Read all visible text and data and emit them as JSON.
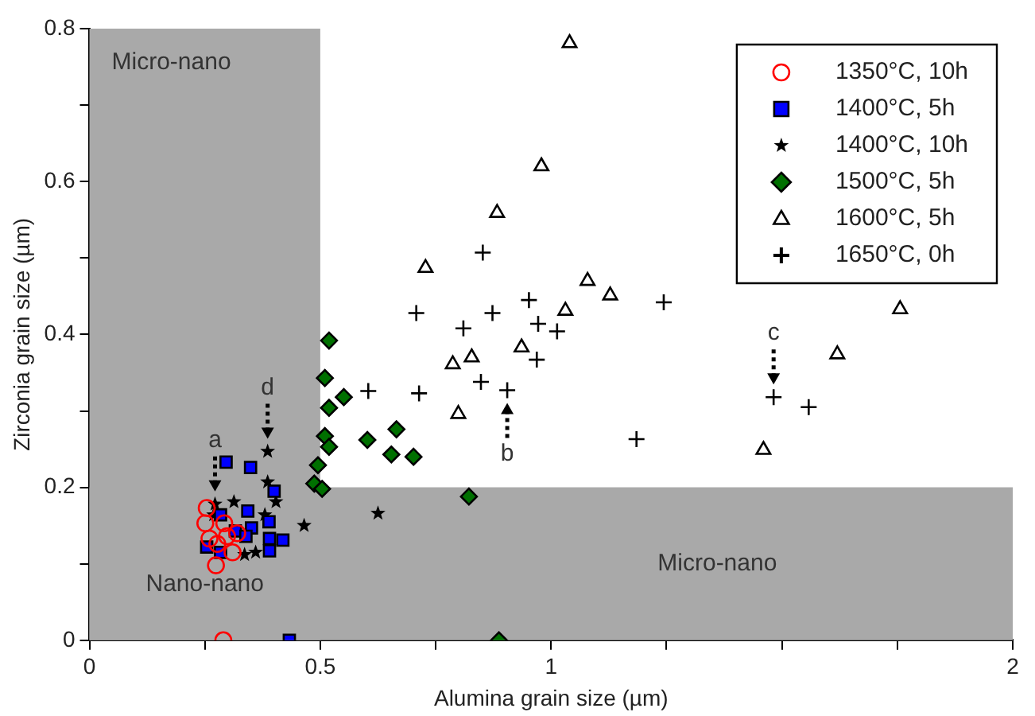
{
  "chart_data": {
    "type": "scatter",
    "xlabel": "Alumina grain size (µm)",
    "ylabel": "Zirconia grain size (µm)",
    "xlim": [
      0,
      2
    ],
    "xticks": [
      0,
      {
        "value": 0.25,
        "label": null
      },
      0.5,
      {
        "value": 0.75,
        "label": null
      },
      1,
      {
        "value": 1.25,
        "label": null
      },
      {
        "value": 1.5,
        "label": null
      },
      {
        "value": 1.75,
        "label": null
      },
      2
    ],
    "ylim": [
      0,
      0.8
    ],
    "yticks": [
      0,
      {
        "value": 0.1,
        "label": null
      },
      0.2,
      {
        "value": 0.3,
        "label": null
      },
      0.4,
      {
        "value": 0.5,
        "label": null
      },
      0.6,
      {
        "value": 0.7,
        "label": null
      },
      0.8
    ],
    "grid": false,
    "legend": "top right",
    "bands": [
      {
        "axis": "x",
        "from": 0,
        "to": 0.5,
        "label": "Micro-nano",
        "color": "#a9a9a9"
      },
      {
        "axis": "y",
        "from": 0,
        "to": 0.2,
        "label": "Micro-nano",
        "color": "#a9a9a9"
      }
    ],
    "annotations": [
      {
        "text": "a",
        "x": 0.272,
        "y": 0.178
      },
      {
        "text": "d",
        "x": 0.386,
        "y": 0.247
      },
      {
        "text": "b",
        "x": 0.905,
        "y": 0.327
      },
      {
        "text": "c",
        "x": 1.482,
        "y": 0.318
      },
      "Nano-nano"
    ],
    "series": [
      {
        "name": "1350°C, 10h",
        "color": "#ff0000",
        "marker": "circle",
        "x": [
          0.254,
          0.251,
          0.26,
          0.277,
          0.292,
          0.298,
          0.31,
          0.274,
          0.32,
          0.29
        ],
        "values": [
          0.173,
          0.153,
          0.133,
          0.126,
          0.153,
          0.136,
          0.115,
          0.098,
          0.14,
          0
        ]
      },
      {
        "name": "1400°C, 5h",
        "color": "#0000ff",
        "marker": "square",
        "x": [
          0.296,
          0.349,
          0.4,
          0.284,
          0.343,
          0.389,
          0.316,
          0.351,
          0.339,
          0.254,
          0.284,
          0.39,
          0.419,
          0.39,
          0.433
        ],
        "values": [
          0.233,
          0.226,
          0.195,
          0.164,
          0.169,
          0.155,
          0.143,
          0.147,
          0.136,
          0.122,
          0.115,
          0.133,
          0.131,
          0.117,
          0
        ]
      },
      {
        "name": "1400°C, 10h",
        "color": "#000000",
        "marker": "star",
        "x": [
          0.386,
          0.386,
          0.404,
          0.272,
          0.313,
          0.465,
          0.38,
          0.336,
          0.36,
          0.269,
          0.625
        ],
        "values": [
          0.247,
          0.207,
          0.181,
          0.178,
          0.181,
          0.15,
          0.164,
          0.112,
          0.115,
          0.164,
          0.166
        ]
      },
      {
        "name": "1500°C, 5h",
        "color": "#007000",
        "marker": "diamond",
        "x": [
          0.519,
          0.51,
          0.551,
          0.519,
          0.51,
          0.519,
          0.495,
          0.487,
          0.504,
          0.602,
          0.665,
          0.654,
          0.702,
          0.822,
          0.887
        ],
        "values": [
          0.392,
          0.343,
          0.318,
          0.304,
          0.267,
          0.253,
          0.229,
          0.205,
          0.198,
          0.262,
          0.276,
          0.243,
          0.24,
          0.188,
          0
        ]
      },
      {
        "name": "1600°C, 5h",
        "color": "#000000",
        "marker": "triangle",
        "x": [
          1.04,
          0.979,
          0.883,
          0.728,
          1.079,
          1.128,
          1.031,
          0.936,
          0.828,
          0.787,
          0.799,
          1.46,
          1.62,
          1.756
        ],
        "values": [
          0.781,
          0.62,
          0.559,
          0.487,
          0.47,
          0.451,
          0.431,
          0.383,
          0.37,
          0.361,
          0.296,
          0.249,
          0.374,
          0.433
        ]
      },
      {
        "name": "1650°C, 0h",
        "color": "#000000",
        "marker": "cross",
        "x": [
          0.852,
          0.952,
          0.708,
          0.873,
          1.244,
          0.81,
          0.972,
          1.013,
          0.969,
          0.848,
          0.905,
          0.714,
          1.185,
          1.482,
          1.558,
          0.604
        ],
        "values": [
          0.507,
          0.445,
          0.428,
          0.428,
          0.442,
          0.408,
          0.414,
          0.404,
          0.367,
          0.338,
          0.327,
          0.323,
          0.263,
          0.318,
          0.305,
          0.326
        ]
      }
    ]
  }
}
